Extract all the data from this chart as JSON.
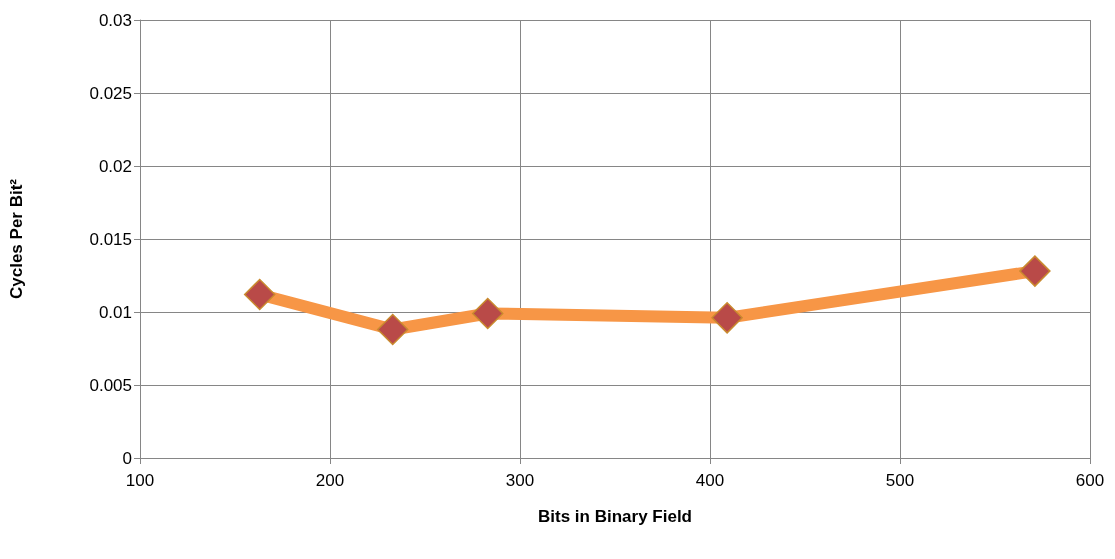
{
  "chart_data": {
    "type": "line",
    "xlabel": "Bits in Binary Field",
    "ylabel": "Cycles Per Bit²",
    "x": [
      163,
      233,
      283,
      409,
      571
    ],
    "series": [
      {
        "color": "#f79646",
        "values": [
          0.0112,
          0.0088,
          0.0099,
          0.0096,
          0.0128
        ]
      }
    ],
    "xlim": [
      100,
      600
    ],
    "xticks": [
      100,
      200,
      300,
      400,
      500,
      600
    ],
    "ylim": [
      0,
      0.03
    ],
    "yticks": [
      0,
      0.005,
      0.01,
      0.015,
      0.02,
      0.025,
      0.03
    ],
    "grid": true,
    "marker": "diamond",
    "line_style": "solid"
  }
}
